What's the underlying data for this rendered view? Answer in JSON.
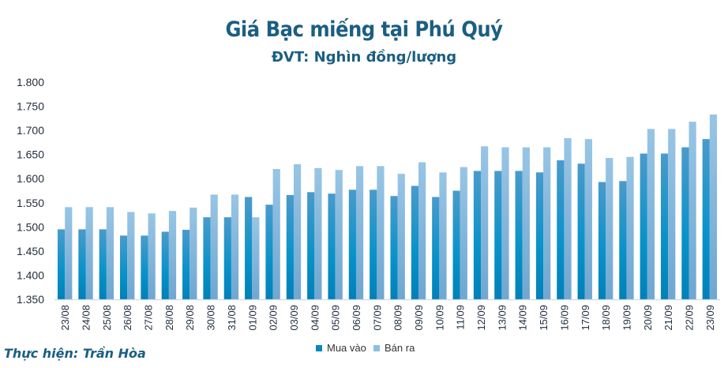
{
  "chart_data": {
    "type": "bar",
    "title": "Giá Bạc miếng tại Phú Quý",
    "subtitle": "ĐVT: Nghìn đồng/lượng",
    "credit": "Thực hiện: Trần Hòa",
    "ylim": [
      1350,
      1800
    ],
    "yticks": [
      "1.350",
      "1.400",
      "1.450",
      "1.500",
      "1.550",
      "1.600",
      "1.650",
      "1.700",
      "1.750",
      "1.800"
    ],
    "grid": false,
    "legend": "bottom",
    "categories": [
      "23/08",
      "24/08",
      "25/08",
      "26/08",
      "27/08",
      "28/08",
      "29/08",
      "30/08",
      "31/08",
      "01/09",
      "02/09",
      "03/09",
      "04/09",
      "05/09",
      "06/09",
      "07/09",
      "08/09",
      "09/09",
      "10/09",
      "11/09",
      "12/09",
      "13/09",
      "14/09",
      "15/09",
      "16/09",
      "17/09",
      "18/09",
      "19/09",
      "20/09",
      "21/09",
      "22/09",
      "23/09"
    ],
    "series": [
      {
        "name": "Mua vào",
        "color": "#0a87bf",
        "values": [
          1495,
          1495,
          1495,
          1482,
          1482,
          1490,
          1494,
          1520,
          1520,
          1562,
          1546,
          1566,
          1572,
          1569,
          1577,
          1577,
          1564,
          1585,
          1562,
          1575,
          1616,
          1616,
          1616,
          1613,
          1638,
          1631,
          1593,
          1595,
          1652,
          1652,
          1665,
          1682
        ]
      },
      {
        "name": "Bán ra",
        "color": "#8dbfe3",
        "values": [
          1541,
          1541,
          1541,
          1531,
          1528,
          1533,
          1540,
          1567,
          1567,
          1520,
          1620,
          1630,
          1622,
          1618,
          1626,
          1626,
          1610,
          1634,
          1613,
          1624,
          1667,
          1665,
          1665,
          1665,
          1684,
          1682,
          1643,
          1645,
          1703,
          1703,
          1718,
          1733
        ]
      }
    ]
  }
}
